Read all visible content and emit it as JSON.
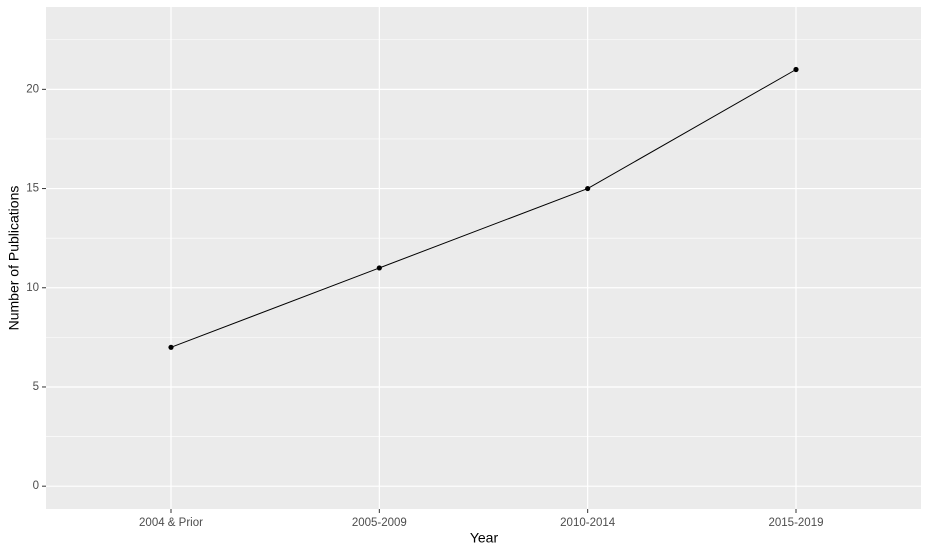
{
  "chart_data": {
    "type": "line",
    "x_label": "Year",
    "y_label": "Number of Publications",
    "categories": [
      "2004 & Prior",
      "2005-2009",
      "2010-2014",
      "2015-2019"
    ],
    "values": [
      7,
      11,
      15,
      21
    ],
    "color": "#000000",
    "ylim": [
      -1.15,
      24.15
    ],
    "yticks": [
      0,
      5,
      10,
      15,
      20
    ],
    "grid": true,
    "minor_grid": true
  }
}
